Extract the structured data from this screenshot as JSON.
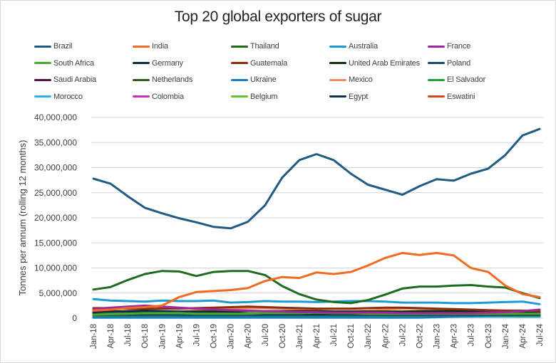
{
  "chart_data": {
    "type": "line",
    "title": "Top 20 global exporters of sugar",
    "xlabel": "",
    "ylabel": "Tonnes per annum (rolling 12 months)",
    "ylim": [
      0,
      40000000
    ],
    "yticks": [
      0,
      5000000,
      10000000,
      15000000,
      20000000,
      25000000,
      30000000,
      35000000,
      40000000
    ],
    "ytick_labels": [
      "0",
      "5,000,000",
      "10,000,000",
      "15,000,000",
      "20,000,000",
      "25,000,000",
      "30,000,000",
      "35,000,000",
      "40,000,000"
    ],
    "grid": true,
    "legend_position": "top",
    "x_start": "Jan-18",
    "x_end": "Jul-24",
    "xtick_labels": [
      "Jan-18",
      "Apr-18",
      "Jul-18",
      "Oct-18",
      "Jan-19",
      "Apr-19",
      "Jul-19",
      "Oct-19",
      "Jan-20",
      "Apr-20",
      "Jul-20",
      "Oct-20",
      "Jan-21",
      "Apr-21",
      "Jul-21",
      "Oct-21",
      "Jan-22",
      "Apr-22",
      "Jul-22",
      "Oct-22",
      "Jan-23",
      "Apr-23",
      "Jul-23",
      "Oct-23",
      "Jan-24",
      "Apr-24",
      "Jul-24"
    ],
    "x_quarterly_note": "values given quarterly (Jan, Apr, Jul, Oct), in tonnes",
    "series": [
      {
        "name": "Brazil",
        "color": "#1f5b82",
        "values": [
          27800000,
          26800000,
          24300000,
          22000000,
          20900000,
          19900000,
          19100000,
          18200000,
          17900000,
          19200000,
          22500000,
          28000000,
          31500000,
          32700000,
          31500000,
          28800000,
          26600000,
          25600000,
          24600000,
          26300000,
          27700000,
          27400000,
          28800000,
          29800000,
          32500000,
          36400000,
          37700000
        ]
      },
      {
        "name": "India",
        "color": "#f26b21",
        "values": [
          1500000,
          1700000,
          2000000,
          2200000,
          2500000,
          4200000,
          5200000,
          5400000,
          5600000,
          6000000,
          7400000,
          8200000,
          8000000,
          9100000,
          8800000,
          9200000,
          10500000,
          12000000,
          13000000,
          12600000,
          13000000,
          12500000,
          10000000,
          9200000,
          6500000,
          4800000,
          4200000
        ]
      },
      {
        "name": "Thailand",
        "color": "#1e6b1e",
        "values": [
          5700000,
          6200000,
          7600000,
          8800000,
          9400000,
          9300000,
          8400000,
          9200000,
          9400000,
          9400000,
          8600000,
          6400000,
          4800000,
          3700000,
          3200000,
          3000000,
          3600000,
          4700000,
          5900000,
          6300000,
          6300000,
          6500000,
          6600000,
          6300000,
          6100000,
          5000000,
          4000000
        ]
      },
      {
        "name": "Australia",
        "color": "#1e9ad6",
        "values": [
          3800000,
          3500000,
          3400000,
          3300000,
          3500000,
          3400000,
          3400000,
          3500000,
          3100000,
          3200000,
          3400000,
          3300000,
          3300000,
          3200000,
          3300000,
          3400000,
          3400000,
          3300000,
          3100000,
          3100000,
          3100000,
          3000000,
          3000000,
          3100000,
          3200000,
          3300000,
          2800000
        ]
      },
      {
        "name": "France",
        "color": "#a0289e",
        "values": [
          1800000,
          2100000,
          2300000,
          2500000,
          2300000,
          2100000,
          1900000,
          1700000,
          1600000,
          1500000,
          1400000,
          1300000,
          1200000,
          1200000,
          1100000,
          1100000,
          1100000,
          1100000,
          1000000,
          1000000,
          1000000,
          1000000,
          1000000,
          1100000,
          1200000,
          1400000,
          1700000
        ]
      },
      {
        "name": "South Africa",
        "color": "#4caa2a",
        "values": [
          700000,
          800000,
          900000,
          1000000,
          1000000,
          1000000,
          900000,
          900000,
          900000,
          900000,
          1000000,
          1000000,
          1000000,
          1100000,
          1000000,
          1000000,
          900000,
          900000,
          900000,
          900000,
          900000,
          900000,
          900000,
          900000,
          900000,
          900000,
          900000
        ]
      },
      {
        "name": "Germany",
        "color": "#0f2c45",
        "values": [
          1200000,
          1300000,
          1400000,
          1500000,
          1400000,
          1300000,
          1200000,
          1100000,
          1000000,
          900000,
          900000,
          900000,
          900000,
          900000,
          900000,
          900000,
          900000,
          900000,
          900000,
          900000,
          900000,
          900000,
          900000,
          900000,
          900000,
          800000,
          800000
        ]
      },
      {
        "name": "Guatemala",
        "color": "#8c2e0b",
        "values": [
          2000000,
          2000000,
          1900000,
          1900000,
          1900000,
          1900000,
          2000000,
          2100000,
          2200000,
          2300000,
          2200000,
          2100000,
          2000000,
          1900000,
          1900000,
          1900000,
          2000000,
          2100000,
          2100000,
          2000000,
          1900000,
          1800000,
          1700000,
          1600000,
          1500000,
          1500000,
          1400000
        ]
      },
      {
        "name": "United Arab Emirates",
        "color": "#0a2e10",
        "values": [
          1300000,
          1300000,
          1300000,
          1300000,
          1300000,
          1300000,
          1300000,
          1300000,
          1300000,
          1400000,
          1400000,
          1400000,
          1400000,
          1400000,
          1300000,
          1300000,
          1300000,
          1300000,
          1300000,
          1400000,
          1400000,
          1400000,
          1300000,
          1200000,
          1200000,
          1100000,
          1100000
        ]
      },
      {
        "name": "Poland",
        "color": "#144f70",
        "values": [
          700000,
          700000,
          700000,
          700000,
          700000,
          600000,
          600000,
          600000,
          600000,
          600000,
          600000,
          600000,
          700000,
          700000,
          700000,
          700000,
          700000,
          700000,
          700000,
          700000,
          700000,
          700000,
          700000,
          700000,
          700000,
          700000,
          700000
        ]
      },
      {
        "name": "Saudi Arabia",
        "color": "#54104a",
        "values": [
          800000,
          800000,
          800000,
          800000,
          800000,
          800000,
          800000,
          800000,
          800000,
          800000,
          800000,
          800000,
          800000,
          800000,
          800000,
          800000,
          800000,
          800000,
          800000,
          800000,
          800000,
          800000,
          800000,
          800000,
          800000,
          800000,
          800000
        ]
      },
      {
        "name": "Netherlands",
        "color": "#2c5e1e",
        "values": [
          600000,
          600000,
          600000,
          600000,
          600000,
          600000,
          600000,
          600000,
          600000,
          600000,
          600000,
          600000,
          600000,
          600000,
          600000,
          600000,
          600000,
          600000,
          600000,
          600000,
          600000,
          600000,
          600000,
          600000,
          600000,
          600000,
          600000
        ]
      },
      {
        "name": "Ukraine",
        "color": "#1580c2",
        "values": [
          100000,
          100000,
          100000,
          100000,
          100000,
          100000,
          100000,
          100000,
          100000,
          100000,
          100000,
          100000,
          100000,
          100000,
          100000,
          100000,
          100000,
          100000,
          100000,
          100000,
          200000,
          300000,
          400000,
          500000,
          600000,
          700000,
          700000
        ]
      },
      {
        "name": "Mexico",
        "color": "#f08a5a",
        "values": [
          1400000,
          1300000,
          1200000,
          1100000,
          1200000,
          1300000,
          1500000,
          1700000,
          1900000,
          2000000,
          2000000,
          1900000,
          1700000,
          1500000,
          1400000,
          1400000,
          1500000,
          1700000,
          1900000,
          1900000,
          1800000,
          1700000,
          1500000,
          1300000,
          1100000,
          1000000,
          1000000
        ]
      },
      {
        "name": "El Salvador",
        "color": "#22a33a",
        "values": [
          500000,
          500000,
          500000,
          500000,
          500000,
          500000,
          500000,
          500000,
          500000,
          500000,
          500000,
          500000,
          500000,
          500000,
          500000,
          500000,
          500000,
          500000,
          500000,
          500000,
          500000,
          500000,
          500000,
          500000,
          500000,
          500000,
          500000
        ]
      },
      {
        "name": "Morocco",
        "color": "#2ab3ea",
        "values": [
          300000,
          300000,
          300000,
          300000,
          300000,
          300000,
          300000,
          300000,
          300000,
          300000,
          300000,
          300000,
          300000,
          300000,
          300000,
          300000,
          300000,
          300000,
          300000,
          300000,
          300000,
          300000,
          300000,
          300000,
          300000,
          300000,
          300000
        ]
      },
      {
        "name": "Colombia",
        "color": "#c433c0",
        "values": [
          400000,
          400000,
          400000,
          400000,
          400000,
          400000,
          400000,
          400000,
          400000,
          400000,
          400000,
          400000,
          400000,
          400000,
          400000,
          400000,
          400000,
          400000,
          400000,
          400000,
          400000,
          400000,
          400000,
          400000,
          400000,
          400000,
          400000
        ]
      },
      {
        "name": "Belgium",
        "color": "#5cc43a",
        "values": [
          1000000,
          1000000,
          1100000,
          1100000,
          1100000,
          1100000,
          1000000,
          1000000,
          900000,
          900000,
          800000,
          800000,
          800000,
          700000,
          700000,
          700000,
          700000,
          700000,
          700000,
          700000,
          600000,
          600000,
          600000,
          600000,
          600000,
          600000,
          600000
        ]
      },
      {
        "name": "Egypt",
        "color": "#12304f",
        "values": [
          200000,
          200000,
          200000,
          200000,
          200000,
          200000,
          200000,
          200000,
          200000,
          200000,
          200000,
          200000,
          200000,
          200000,
          200000,
          200000,
          200000,
          300000,
          500000,
          700000,
          800000,
          800000,
          700000,
          500000,
          400000,
          300000,
          300000
        ]
      },
      {
        "name": "Eswatini",
        "color": "#d2481a",
        "values": [
          500000,
          500000,
          500000,
          500000,
          500000,
          500000,
          500000,
          500000,
          500000,
          500000,
          500000,
          500000,
          500000,
          500000,
          500000,
          500000,
          500000,
          500000,
          500000,
          500000,
          500000,
          500000,
          500000,
          500000,
          500000,
          500000,
          500000
        ]
      }
    ]
  }
}
